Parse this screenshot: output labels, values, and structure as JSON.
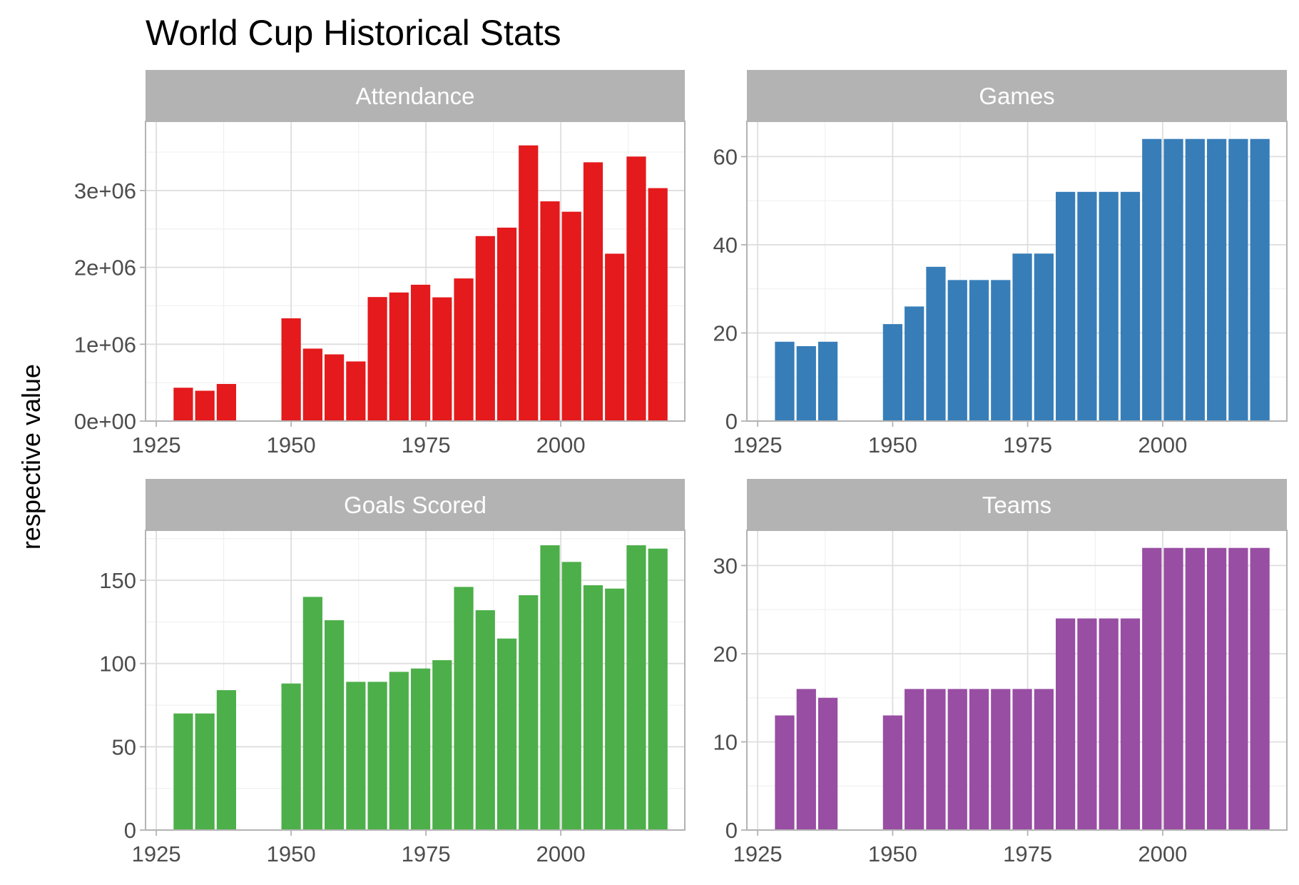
{
  "chart_data": {
    "type": "bar",
    "title": "World Cup Historical Stats",
    "ylabel": "respective value",
    "xlabel": "",
    "x_ticks": [
      1925,
      1950,
      1975,
      2000
    ],
    "xlim": [
      1923,
      2023
    ],
    "years": [
      1930,
      1934,
      1938,
      1950,
      1954,
      1958,
      1962,
      1966,
      1970,
      1974,
      1978,
      1982,
      1986,
      1990,
      1994,
      1998,
      2002,
      2006,
      2010,
      2014,
      2018
    ],
    "bar_width_years": 3.6,
    "grid": true,
    "facets": [
      {
        "name": "Attendance",
        "color": "#E41A1C",
        "ylim": [
          0,
          3900000
        ],
        "y_ticks": [
          0,
          1000000,
          2000000,
          3000000
        ],
        "y_tick_labels": [
          "0e+00",
          "1e+06",
          "2e+06",
          "3e+06"
        ],
        "values": [
          434000,
          395000,
          483000,
          1337000,
          943000,
          868000,
          776000,
          1614000,
          1673000,
          1774000,
          1610000,
          1856000,
          2407000,
          2517000,
          3587000,
          2859000,
          2724000,
          3367000,
          2178000,
          3442000,
          3031000
        ]
      },
      {
        "name": "Games",
        "color": "#377EB8",
        "ylim": [
          0,
          68
        ],
        "y_ticks": [
          0,
          20,
          40,
          60
        ],
        "y_tick_labels": [
          "0",
          "20",
          "40",
          "60"
        ],
        "values": [
          18,
          17,
          18,
          22,
          26,
          35,
          32,
          32,
          32,
          38,
          38,
          52,
          52,
          52,
          52,
          64,
          64,
          64,
          64,
          64,
          64
        ]
      },
      {
        "name": "Goals Scored",
        "color": "#4DAF4A",
        "ylim": [
          0,
          180
        ],
        "y_ticks": [
          0,
          50,
          100,
          150
        ],
        "y_tick_labels": [
          "0",
          "50",
          "100",
          "150"
        ],
        "values": [
          70,
          70,
          84,
          88,
          140,
          126,
          89,
          89,
          95,
          97,
          102,
          146,
          132,
          115,
          141,
          171,
          161,
          147,
          145,
          171,
          169
        ]
      },
      {
        "name": "Teams",
        "color": "#984EA3",
        "ylim": [
          0,
          34
        ],
        "y_ticks": [
          0,
          10,
          20,
          30
        ],
        "y_tick_labels": [
          "0",
          "10",
          "20",
          "30"
        ],
        "values": [
          13,
          16,
          15,
          13,
          16,
          16,
          16,
          16,
          16,
          16,
          16,
          24,
          24,
          24,
          24,
          32,
          32,
          32,
          32,
          32,
          32
        ]
      }
    ]
  }
}
